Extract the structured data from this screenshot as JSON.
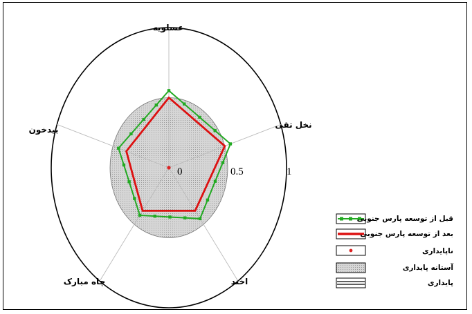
{
  "chart_data": {
    "type": "radar",
    "axes": [
      "عسلویه",
      "نخل تقی",
      "اخند",
      "چاه مبارک",
      "بیدخون"
    ],
    "ticks": [
      "0",
      "0.5",
      "1"
    ],
    "rmax": 1,
    "threshold": 0.5,
    "series": [
      {
        "name": "قبل از توسعه پارس جنوبی",
        "values": [
          0.55,
          0.55,
          0.45,
          0.42,
          0.45
        ],
        "color": "#22aa22",
        "marker": "square"
      },
      {
        "name": "بعد از توسعه پارس جنوبی",
        "values": [
          0.5,
          0.5,
          0.38,
          0.38,
          0.38
        ],
        "color": "#dd1111",
        "marker": "none"
      }
    ],
    "legend": [
      {
        "key": "before",
        "label": "قبل از توسعه پارس جنوبی"
      },
      {
        "key": "after",
        "label": "بعد از توسعه پارس جنوبی"
      },
      {
        "key": "unstable",
        "label": "ناپایداری"
      },
      {
        "key": "threshold",
        "label": "آستانه پایداری"
      },
      {
        "key": "stable",
        "label": "پایداری"
      }
    ],
    "colors": {
      "outer_ring": "#000000",
      "spokes": "#bbbbbb",
      "threshold_fill": "#d4d4d4",
      "unstable_dot": "#dd2222"
    }
  }
}
